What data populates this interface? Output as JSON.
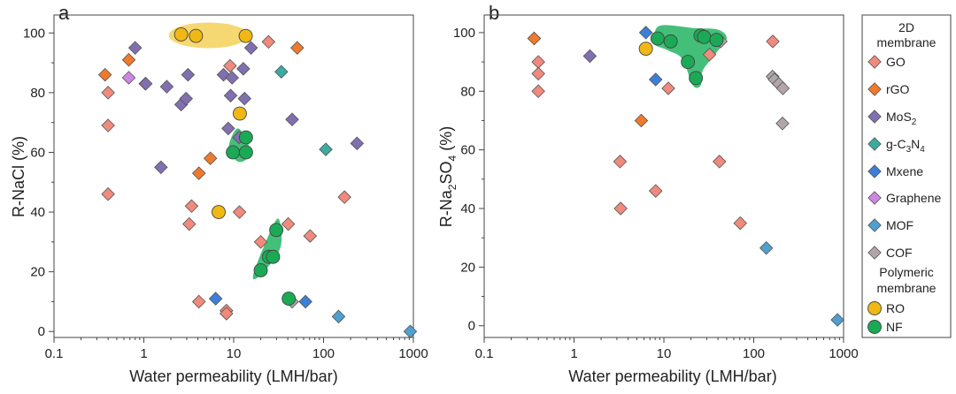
{
  "legend": {
    "group1_title": "2D membrane",
    "group2_title": "Polymeric membrane",
    "items": [
      {
        "key": "GO",
        "label": "GO",
        "shape": "diamond",
        "color": "#ef8a7c"
      },
      {
        "key": "rGO",
        "label": "rGO",
        "shape": "diamond",
        "color": "#ef7a2c"
      },
      {
        "key": "MoS2",
        "label": "MoS2",
        "shape": "diamond",
        "color": "#8070b0"
      },
      {
        "key": "gC3N4",
        "label": "g-C3N4",
        "shape": "diamond",
        "color": "#3aaba0"
      },
      {
        "key": "Mxene",
        "label": "Mxene",
        "shape": "diamond",
        "color": "#3c7fd8"
      },
      {
        "key": "Graphene",
        "label": "Graphene",
        "shape": "diamond",
        "color": "#cc88e0"
      },
      {
        "key": "MOF",
        "label": "MOF",
        "shape": "diamond",
        "color": "#4f9fd0"
      },
      {
        "key": "COF",
        "label": "COF",
        "shape": "diamond",
        "color": "#b0a6aa"
      },
      {
        "key": "RO",
        "label": "RO",
        "shape": "circle",
        "color": "#f0b814"
      },
      {
        "key": "NF",
        "label": "NF",
        "shape": "circle",
        "color": "#1aaa55"
      }
    ]
  },
  "chart_data": [
    {
      "type": "scatter",
      "panel_label": "a",
      "xlabel": "Water permeability (LMH/bar)",
      "ylabel": "R-NaCl (%)",
      "xscale": "log",
      "xlim": [
        0.1,
        1000
      ],
      "ylim": [
        -2,
        106
      ],
      "xticks": [
        0.1,
        1,
        10,
        100,
        1000
      ],
      "xtick_labels": [
        "0.1",
        "1",
        "10",
        "100",
        "1000"
      ],
      "yticks": [
        0,
        20,
        40,
        60,
        80,
        100
      ],
      "yticks_minor": [
        10,
        30,
        50,
        70,
        90
      ],
      "highlight_regions": [
        {
          "series": "RO",
          "shape": "ellipse",
          "color": "#f5d15a",
          "center": [
            4.6,
            99.2
          ],
          "x_range": [
            1.9,
            14.5
          ],
          "y_range": [
            94.9,
            103.5
          ]
        },
        {
          "series": "NF",
          "shape": "blob",
          "color": "#2fb86a",
          "points": [
            [
              8.8,
              61.5
            ],
            [
              11,
              68
            ],
            [
              14.5,
              63
            ],
            [
              14,
              58
            ],
            [
              11,
              57
            ]
          ]
        },
        {
          "series": "NF",
          "shape": "blob",
          "color": "#2fb86a",
          "points": [
            [
              16.5,
              19
            ],
            [
              20,
              19
            ],
            [
              33,
              28
            ],
            [
              32,
              37.5
            ],
            [
              26,
              34
            ]
          ]
        }
      ],
      "series": [
        {
          "name": "GO",
          "points": [
            [
              0.4,
              80
            ],
            [
              0.4,
              69
            ],
            [
              0.4,
              46
            ],
            [
              3.2,
              36
            ],
            [
              3.4,
              42
            ],
            [
              4.1,
              10
            ],
            [
              8.3,
              7
            ],
            [
              8.3,
              6
            ],
            [
              9.1,
              89
            ],
            [
              11.6,
              40
            ],
            [
              20,
              30
            ],
            [
              24.4,
              97
            ],
            [
              40.5,
              36
            ],
            [
              70.8,
              32
            ],
            [
              171,
              45
            ]
          ]
        },
        {
          "name": "rGO",
          "points": [
            [
              0.37,
              86
            ],
            [
              0.68,
              91
            ],
            [
              1.04,
              83
            ],
            [
              4.1,
              53
            ],
            [
              5.5,
              58
            ],
            [
              51,
              95
            ]
          ]
        },
        {
          "name": "MoS2",
          "points": [
            [
              0.8,
              95
            ],
            [
              1.05,
              83
            ],
            [
              1.55,
              55
            ],
            [
              1.8,
              82
            ],
            [
              2.6,
              76
            ],
            [
              2.95,
              78
            ],
            [
              3.1,
              86
            ],
            [
              7.7,
              86
            ],
            [
              8.7,
              68
            ],
            [
              9.25,
              79
            ],
            [
              9.6,
              85
            ],
            [
              11.5,
              65
            ],
            [
              12.8,
              88
            ],
            [
              13.2,
              78
            ],
            [
              15.6,
              95
            ],
            [
              44.7,
              71
            ],
            [
              236,
              63
            ]
          ]
        },
        {
          "name": "gC3N4",
          "points": [
            [
              33.9,
              87
            ],
            [
              106,
              61
            ]
          ]
        },
        {
          "name": "Mxene",
          "points": [
            [
              6.3,
              11
            ],
            [
              63,
              10
            ]
          ]
        },
        {
          "name": "Graphene",
          "points": [
            [
              0.68,
              85
            ]
          ]
        },
        {
          "name": "MOF",
          "points": [
            [
              147,
              5
            ],
            [
              923,
              0
            ]
          ]
        },
        {
          "name": "COF",
          "points": [
            [
              44.7,
              10
            ]
          ]
        },
        {
          "name": "RO",
          "points": [
            [
              2.6,
              99.5
            ],
            [
              3.8,
              99
            ],
            [
              6.8,
              40
            ],
            [
              11.7,
              73
            ],
            [
              13.6,
              99
            ]
          ]
        },
        {
          "name": "NF",
          "points": [
            [
              9.8,
              60
            ],
            [
              13.7,
              60
            ],
            [
              13.7,
              65
            ],
            [
              20,
              20.5
            ],
            [
              24.7,
              25
            ],
            [
              27.4,
              25
            ],
            [
              29.8,
              34
            ],
            [
              41,
              11
            ]
          ]
        }
      ]
    },
    {
      "type": "scatter",
      "panel_label": "b",
      "xlabel": "Water permeability (LMH/bar)",
      "ylabel": "R-Na2SO4 (%)",
      "xscale": "log",
      "xlim": [
        0.1,
        1000
      ],
      "ylim": [
        -4,
        106
      ],
      "xticks": [
        0.1,
        1,
        10,
        100,
        1000
      ],
      "xtick_labels": [
        "0.1",
        "1",
        "10",
        "100",
        "1000"
      ],
      "yticks": [
        0,
        20,
        40,
        60,
        80,
        100
      ],
      "yticks_minor": [
        10,
        30,
        50,
        70,
        90
      ],
      "highlight_regions": [
        {
          "series": "NF",
          "shape": "blob",
          "color": "#2fb86a",
          "points": [
            [
              7.8,
              99.5
            ],
            [
              9.5,
              102.5
            ],
            [
              22,
              101.5
            ],
            [
              40,
              101
            ],
            [
              50,
              98
            ],
            [
              38,
              93
            ],
            [
              27,
              87
            ],
            [
              25.7,
              82
            ],
            [
              21,
              82
            ],
            [
              16,
              91
            ],
            [
              11,
              94
            ],
            [
              7.8,
              96
            ]
          ]
        }
      ],
      "series": [
        {
          "name": "GO",
          "points": [
            [
              0.36,
              98
            ],
            [
              0.4,
              90
            ],
            [
              0.4,
              86
            ],
            [
              0.4,
              80
            ],
            [
              3.25,
              56
            ],
            [
              3.3,
              40
            ],
            [
              8.1,
              46
            ],
            [
              11.2,
              81
            ],
            [
              32.2,
              92.5
            ],
            [
              41.5,
              56
            ],
            [
              70.8,
              35
            ],
            [
              163,
              97
            ]
          ]
        },
        {
          "name": "rGO",
          "points": [
            [
              0.36,
              98
            ],
            [
              5.6,
              70
            ]
          ]
        },
        {
          "name": "MoS2",
          "points": [
            [
              1.5,
              92
            ]
          ]
        },
        {
          "name": "gC3N4",
          "points": []
        },
        {
          "name": "Mxene",
          "points": [
            [
              6.3,
              100
            ],
            [
              8.1,
              84
            ]
          ]
        },
        {
          "name": "Graphene",
          "points": []
        },
        {
          "name": "MOF",
          "points": [
            [
              138,
              26.5
            ],
            [
              855,
              2
            ]
          ]
        },
        {
          "name": "COF",
          "points": [
            [
              43,
              97
            ],
            [
              162,
              85
            ],
            [
              170,
              84
            ],
            [
              190,
              82.5
            ],
            [
              211,
              81
            ],
            [
              209,
              69
            ]
          ]
        },
        {
          "name": "RO",
          "points": [
            [
              6.3,
              94.5
            ]
          ]
        },
        {
          "name": "NF",
          "points": [
            [
              8.5,
              98
            ],
            [
              11.9,
              97
            ],
            [
              18.5,
              90
            ],
            [
              22.7,
              84.5
            ],
            [
              25.6,
              99
            ],
            [
              28,
              98.5
            ],
            [
              38.5,
              97.5
            ]
          ]
        }
      ]
    }
  ]
}
